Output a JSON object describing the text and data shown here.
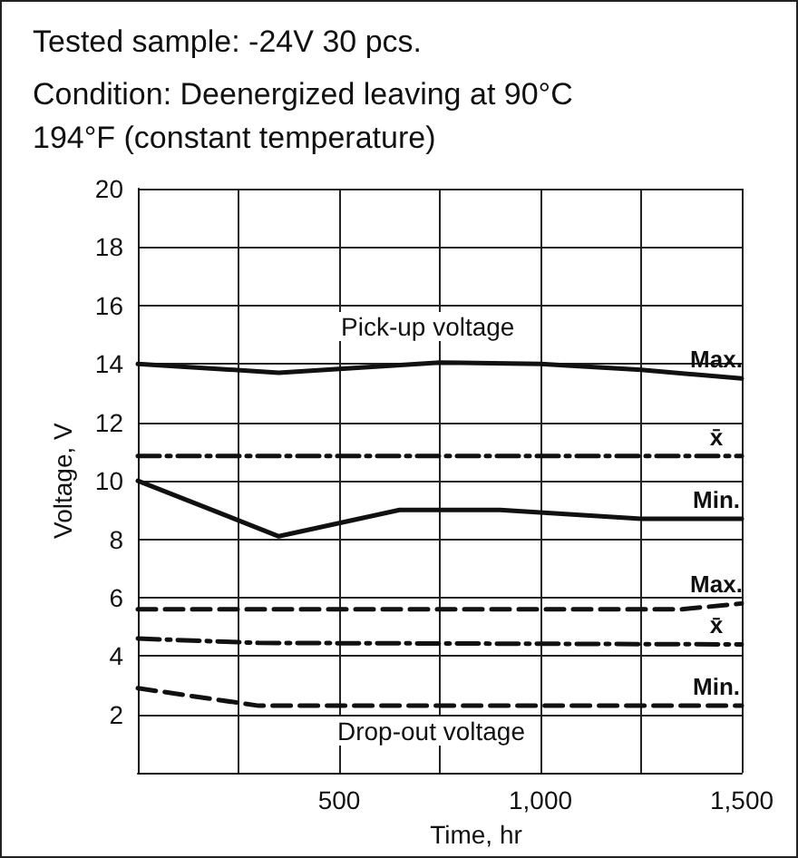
{
  "chart_data": {
    "type": "line",
    "title": "Tested sample: -24V 30 pcs.",
    "subtitle": "Condition: Deenergized leaving at 90°C\n194°F (constant temperature)",
    "xlabel": "Time, hr",
    "ylabel": "Voltage, V",
    "annotations": [
      "Pick-up voltage",
      "Drop-out voltage"
    ],
    "series": [
      {
        "name": "Max.",
        "color": "#111111",
        "line_style": "solid",
        "x": [
          0,
          350,
          750,
          1000,
          1250,
          1500
        ],
        "values": [
          14,
          13.7,
          14.05,
          14,
          13.8,
          13.5
        ]
      },
      {
        "name": "x̄",
        "color": "#111111",
        "line_style": "dashdot",
        "x": [
          0,
          1500
        ],
        "values": [
          10.85,
          10.85
        ]
      },
      {
        "name": "Min.",
        "color": "#111111",
        "line_style": "solid",
        "x": [
          0,
          350,
          650,
          900,
          1250,
          1500
        ],
        "values": [
          10,
          8.1,
          9,
          9,
          8.7,
          8.7
        ]
      },
      {
        "name": "Max.",
        "color": "#111111",
        "line_style": "dashed",
        "x": [
          0,
          1350,
          1500
        ],
        "values": [
          5.6,
          5.6,
          5.8
        ]
      },
      {
        "name": "x̄",
        "color": "#111111",
        "line_style": "dashdot",
        "x": [
          0,
          300,
          1500
        ],
        "values": [
          4.6,
          4.45,
          4.4
        ]
      },
      {
        "name": "Min.",
        "color": "#111111",
        "line_style": "dashed",
        "x": [
          0,
          300,
          1500
        ],
        "values": [
          2.9,
          2.3,
          2.3
        ]
      }
    ],
    "xlim": [
      0,
      1500
    ],
    "xticks": [
      {
        "value": 0,
        "label": null
      },
      {
        "value": 250,
        "label": null
      },
      {
        "value": 500,
        "label": "500"
      },
      {
        "value": 750,
        "label": null
      },
      {
        "value": 1000,
        "label": "1,000"
      },
      {
        "value": 1250,
        "label": null
      },
      {
        "value": 1500,
        "label": "1,500"
      }
    ],
    "ylim": [
      0,
      20
    ],
    "yticks": [
      {
        "value": 0,
        "label": null
      },
      2,
      4,
      6,
      8,
      10,
      12,
      14,
      16,
      18,
      20
    ],
    "grid": true,
    "legend": false,
    "marker": "none"
  }
}
